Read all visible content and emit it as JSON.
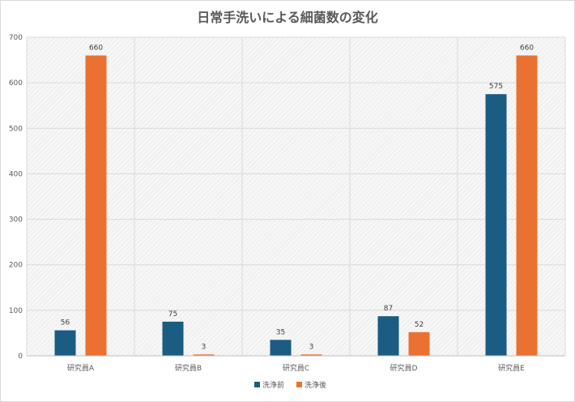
{
  "chart_data": {
    "type": "bar",
    "title": "日常手洗いによる細菌数の変化",
    "categories": [
      "研究員A",
      "研究員B",
      "研究員C",
      "研究員D",
      "研究員E"
    ],
    "series": [
      {
        "name": "洗浄前",
        "values": [
          56,
          75,
          35,
          87,
          575
        ],
        "color": "#1a5c82"
      },
      {
        "name": "洗浄後",
        "values": [
          660,
          3,
          3,
          52,
          660
        ],
        "color": "#ea7131"
      }
    ],
    "ylim": [
      0,
      700
    ],
    "yticks": [
      0,
      100,
      200,
      300,
      400,
      500,
      600,
      700
    ],
    "grid": true,
    "legend": "bottom",
    "xlabel": "",
    "ylabel": ""
  }
}
